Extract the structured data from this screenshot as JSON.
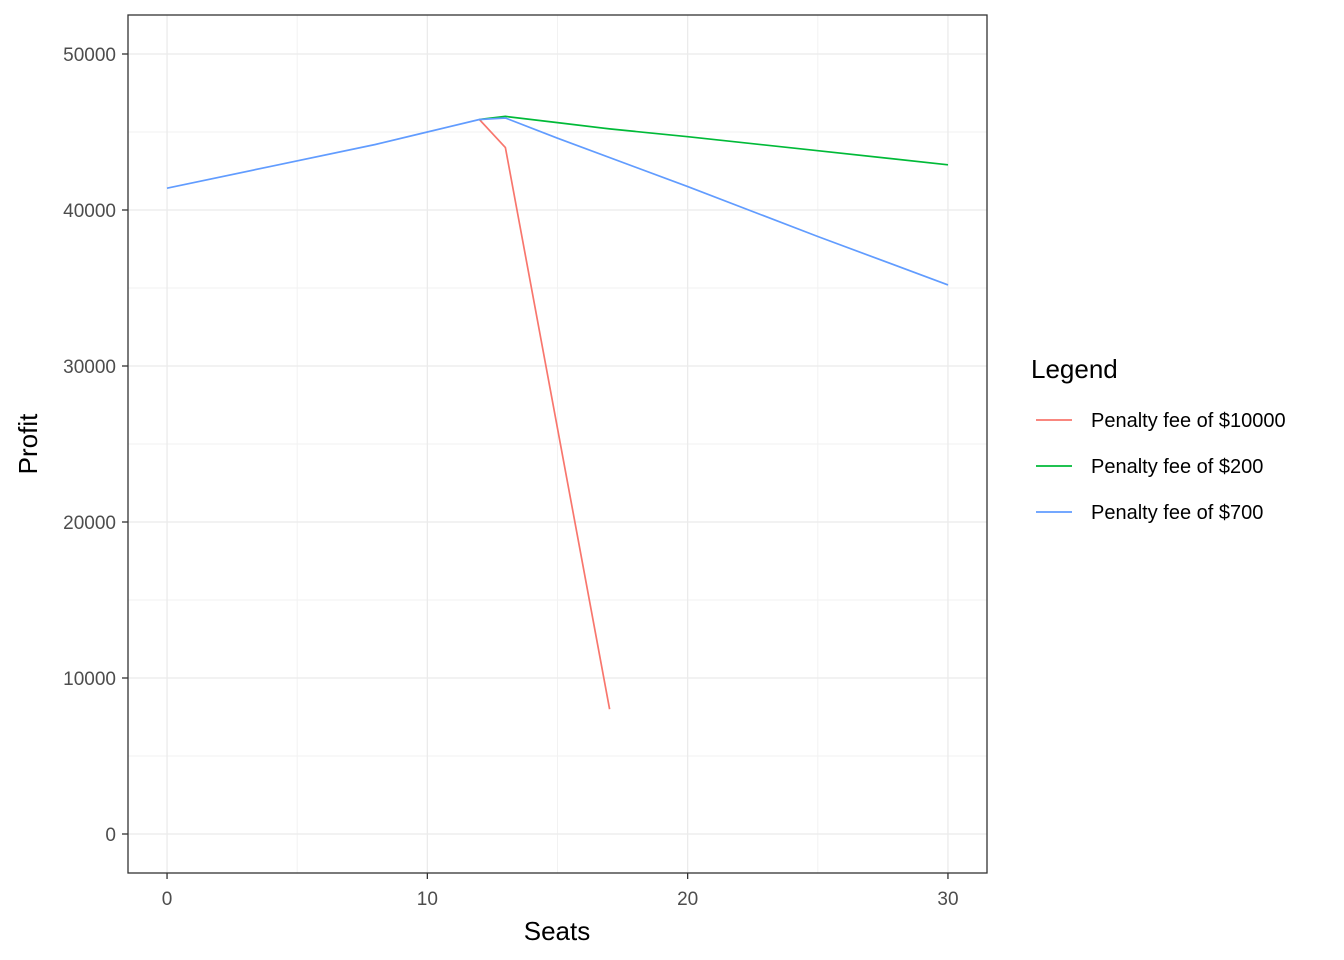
{
  "chart_data": {
    "type": "line",
    "xlabel": "Seats",
    "ylabel": "Profit",
    "xlim": [
      -1.5,
      31.5
    ],
    "ylim": [
      -2500,
      52500
    ],
    "x_ticks": [
      0,
      10,
      20,
      30
    ],
    "y_ticks": [
      0,
      10000,
      20000,
      30000,
      40000,
      50000
    ],
    "grid": true,
    "legend": {
      "title": "Legend",
      "position": "right"
    },
    "series": [
      {
        "name": "Penalty fee of $10000",
        "color": "#F8766D",
        "points": [
          [
            12,
            45800
          ],
          [
            13,
            44000
          ],
          [
            17,
            8000
          ]
        ]
      },
      {
        "name": "Penalty fee of $200",
        "color": "#00BA38",
        "points": [
          [
            12,
            45800
          ],
          [
            13,
            46000
          ],
          [
            15,
            45600
          ],
          [
            17,
            45200
          ],
          [
            20,
            44700
          ],
          [
            25,
            43800
          ],
          [
            30,
            42900
          ]
        ]
      },
      {
        "name": "Penalty fee of $700",
        "color": "#619CFF",
        "points": [
          [
            0,
            41400
          ],
          [
            4,
            42800
          ],
          [
            8,
            44200
          ],
          [
            10,
            45000
          ],
          [
            12,
            45800
          ],
          [
            13,
            45900
          ],
          [
            15,
            44600
          ],
          [
            20,
            41500
          ],
          [
            25,
            38300
          ],
          [
            30,
            35200
          ]
        ]
      }
    ]
  }
}
